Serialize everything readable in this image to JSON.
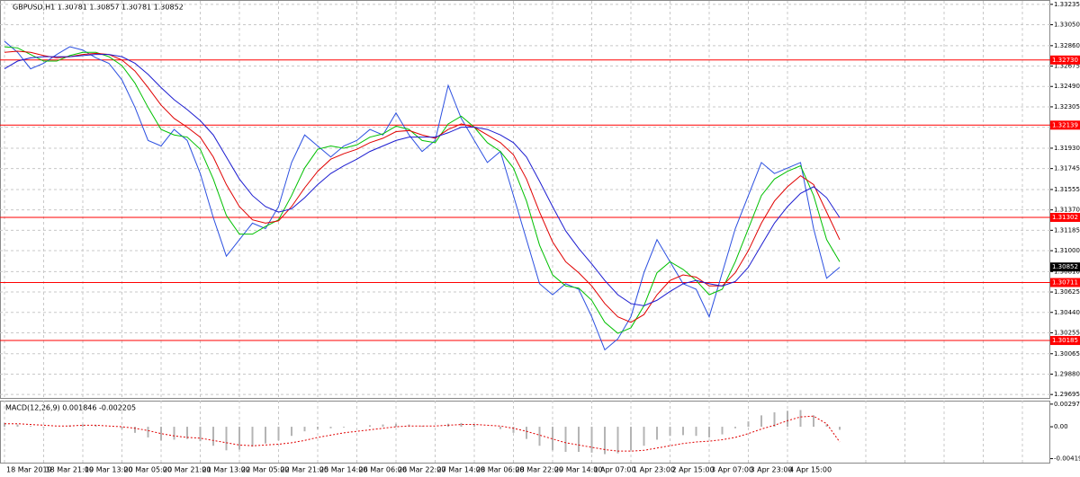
{
  "chart_data": [
    {
      "type": "line",
      "title": "GBPUSD,H1  1.30781 1.30857 1.30781 1.30852",
      "categories": [
        "18 Mar 2019",
        null,
        null,
        "18 Mar 21:00",
        null,
        null,
        "19 Mar 13:00",
        null,
        null,
        "20 Mar 05:00",
        null,
        null,
        "20 Mar 21:00",
        null,
        null,
        "21 Mar 13:00",
        null,
        null,
        "22 Mar 05:00",
        null,
        null,
        "22 Mar 21:00",
        null,
        null,
        "25 Mar 14:00",
        null,
        null,
        "26 Mar 06:00",
        null,
        null,
        "26 Mar 22:00",
        null,
        null,
        "27 Mar 14:00",
        null,
        null,
        "28 Mar 06:00",
        null,
        null,
        "28 Mar 22:00",
        null,
        null,
        "29 Mar 14:00",
        null,
        null,
        "1 Apr 07:00",
        null,
        null,
        "1 Apr 23:00",
        null,
        null,
        "2 Apr 15:00",
        null,
        null,
        "3 Apr 07:00",
        null,
        null,
        "3 Apr 23:00",
        null,
        null,
        "4 Apr 15:00",
        null,
        null,
        null,
        null
      ],
      "series": [
        {
          "color": "#2b4fe0",
          "values": [
            1.329,
            1.328,
            1.3265,
            1.327,
            1.3278,
            1.3285,
            1.3282,
            1.3275,
            1.327,
            1.3255,
            1.323,
            1.32,
            1.3195,
            1.321,
            1.32,
            1.317,
            1.313,
            1.3095,
            1.311,
            1.3125,
            1.312,
            1.314,
            1.318,
            1.3205,
            1.3195,
            1.3185,
            1.3195,
            1.32,
            1.321,
            1.3205,
            1.3225,
            1.3205,
            1.319,
            1.32,
            1.325,
            1.322,
            1.32,
            1.318,
            1.319,
            1.315,
            1.311,
            1.307,
            1.306,
            1.307,
            1.3065,
            1.304,
            1.301,
            1.302,
            1.304,
            1.308,
            1.311,
            1.309,
            1.307,
            1.3065,
            1.304,
            1.308,
            1.312,
            1.315,
            1.318,
            1.317,
            1.3175,
            1.318,
            1.312,
            1.3075,
            1.3085
          ]
        },
        {
          "color": "#00c000",
          "values": [
            1.3285,
            1.3284,
            1.3278,
            1.3272,
            1.3272,
            1.3277,
            1.328,
            1.328,
            1.3276,
            1.3268,
            1.3252,
            1.323,
            1.321,
            1.3205,
            1.3203,
            1.3192,
            1.3165,
            1.3132,
            1.3115,
            1.3115,
            1.3122,
            1.3128,
            1.315,
            1.3175,
            1.3192,
            1.3195,
            1.3193,
            1.3196,
            1.3203,
            1.3206,
            1.3213,
            1.321,
            1.32,
            1.3198,
            1.3215,
            1.3222,
            1.3212,
            1.3198,
            1.319,
            1.3175,
            1.3145,
            1.3105,
            1.3078,
            1.3068,
            1.3066,
            1.3055,
            1.3035,
            1.3025,
            1.303,
            1.305,
            1.308,
            1.309,
            1.3083,
            1.3073,
            1.306,
            1.3065,
            1.309,
            1.312,
            1.315,
            1.3165,
            1.3172,
            1.3177,
            1.315,
            1.311,
            1.309
          ]
        },
        {
          "color": "#e00000",
          "values": [
            1.328,
            1.3281,
            1.328,
            1.3277,
            1.3275,
            1.3276,
            1.3278,
            1.3279,
            1.3278,
            1.3273,
            1.3263,
            1.3248,
            1.3232,
            1.322,
            1.3212,
            1.3203,
            1.3185,
            1.316,
            1.314,
            1.3128,
            1.3125,
            1.3127,
            1.314,
            1.3157,
            1.3172,
            1.3183,
            1.3188,
            1.3192,
            1.3198,
            1.3202,
            1.3208,
            1.3209,
            1.3205,
            1.3202,
            1.321,
            1.3215,
            1.3212,
            1.3205,
            1.3198,
            1.3187,
            1.3165,
            1.3135,
            1.3108,
            1.309,
            1.308,
            1.3068,
            1.3052,
            1.304,
            1.3035,
            1.3042,
            1.306,
            1.3073,
            1.3078,
            1.3076,
            1.3068,
            1.3068,
            1.308,
            1.31,
            1.3125,
            1.3145,
            1.3158,
            1.3168,
            1.316,
            1.3135,
            1.311
          ]
        },
        {
          "color": "#1c1cd0",
          "values": [
            1.3265,
            1.3272,
            1.3275,
            1.3276,
            1.3276,
            1.3276,
            1.3277,
            1.3278,
            1.3278,
            1.3276,
            1.327,
            1.326,
            1.3248,
            1.3237,
            1.3228,
            1.3218,
            1.3205,
            1.3185,
            1.3165,
            1.315,
            1.314,
            1.3135,
            1.3138,
            1.3148,
            1.316,
            1.317,
            1.3177,
            1.3183,
            1.319,
            1.3195,
            1.32,
            1.3203,
            1.3203,
            1.3203,
            1.3207,
            1.3212,
            1.3212,
            1.321,
            1.3205,
            1.3198,
            1.3185,
            1.3163,
            1.314,
            1.3118,
            1.3102,
            1.3088,
            1.3073,
            1.306,
            1.3052,
            1.305,
            1.3055,
            1.3063,
            1.307,
            1.3073,
            1.307,
            1.3068,
            1.3072,
            1.3085,
            1.3105,
            1.3125,
            1.314,
            1.3152,
            1.3158,
            1.3148,
            1.313
          ]
        }
      ],
      "ylim": [
        1.2968,
        1.3325
      ],
      "yticks": [
        {
          "value": 1.33235,
          "label": "1.33235"
        },
        {
          "value": 1.3305,
          "label": "1.33050"
        },
        {
          "value": 1.3286,
          "label": "1.32860"
        },
        {
          "value": 1.32675,
          "label": "1.32675"
        },
        {
          "value": 1.3249,
          "label": "1.32490"
        },
        {
          "value": 1.32305,
          "label": "1.32305"
        },
        {
          "value": 1.3212,
          "label": "1.32120"
        },
        {
          "value": 1.3193,
          "label": "1.31930"
        },
        {
          "value": 1.31745,
          "label": "1.31745"
        },
        {
          "value": 1.31555,
          "label": "1.31555"
        },
        {
          "value": 1.3137,
          "label": "1.31370"
        },
        {
          "value": 1.31185,
          "label": "1.31185"
        },
        {
          "value": 1.31,
          "label": "1.31000"
        },
        {
          "value": 1.3081,
          "label": "1.30810"
        },
        {
          "value": 1.30625,
          "label": "1.30625"
        },
        {
          "value": 1.3044,
          "label": "1.30440"
        },
        {
          "value": 1.30255,
          "label": "1.30255"
        },
        {
          "value": 1.30065,
          "label": "1.30065"
        },
        {
          "value": 1.2988,
          "label": "1.29880"
        },
        {
          "value": 1.29695,
          "label": "1.29695"
        }
      ],
      "levels": [
        {
          "value": 1.3273,
          "label": "1.32730"
        },
        {
          "value": 1.32139,
          "label": "1.32139"
        },
        {
          "value": 1.31302,
          "label": "1.31302"
        },
        {
          "value": 1.30711,
          "label": "1.30711"
        },
        {
          "value": 1.30185,
          "label": "1.30185"
        }
      ],
      "level_color": "#ff0000",
      "current_price": {
        "value": 1.30852,
        "label": "1.30852"
      },
      "grid": true
    },
    {
      "type": "macd",
      "title": "MACD(12,26,9) 0.001846 -0.002205",
      "series": [
        {
          "color": "#b4b4b4",
          "values": [
            0.0005,
            0.0003,
            0.0001,
            -0.0001,
            0.0,
            0.0002,
            0.0003,
            0.0002,
            0.0,
            -0.0003,
            -0.0008,
            -0.0014,
            -0.0018,
            -0.0017,
            -0.0016,
            -0.0019,
            -0.0025,
            -0.0031,
            -0.003,
            -0.0026,
            -0.0022,
            -0.0018,
            -0.0012,
            -0.0006,
            -0.0003,
            -0.0002,
            -0.0001,
            0.0,
            0.0002,
            0.0003,
            0.0004,
            0.0003,
            0.0001,
            0.0,
            0.0004,
            0.0005,
            0.0003,
            0.0,
            -0.0003,
            -0.0008,
            -0.0016,
            -0.0025,
            -0.0031,
            -0.0033,
            -0.0033,
            -0.0034,
            -0.0036,
            -0.0035,
            -0.0031,
            -0.0025,
            -0.0017,
            -0.0012,
            -0.0011,
            -0.0012,
            -0.0014,
            -0.001,
            -0.0002,
            0.0007,
            0.0015,
            0.0019,
            0.0021,
            0.0022,
            0.0015,
            0.0003,
            -0.0004
          ]
        },
        {
          "color": "#e00000",
          "values": [
            0.0004,
            0.0004,
            0.0003,
            0.0002,
            0.0001,
            0.0001,
            0.0002,
            0.0002,
            0.0001,
            0.0,
            -0.0002,
            -0.0005,
            -0.0009,
            -0.0012,
            -0.0014,
            -0.0015,
            -0.0018,
            -0.0021,
            -0.0024,
            -0.0025,
            -0.0024,
            -0.0023,
            -0.0021,
            -0.0018,
            -0.0014,
            -0.0011,
            -0.0008,
            -0.0006,
            -0.0004,
            -0.0002,
            0.0,
            0.0001,
            0.0001,
            0.0001,
            0.0002,
            0.0003,
            0.0003,
            0.0002,
            0.0001,
            -0.0002,
            -0.0006,
            -0.0011,
            -0.0016,
            -0.0021,
            -0.0024,
            -0.0027,
            -0.003,
            -0.0032,
            -0.0032,
            -0.0031,
            -0.0028,
            -0.0025,
            -0.0022,
            -0.002,
            -0.0019,
            -0.0017,
            -0.0014,
            -0.0009,
            -0.0003,
            0.0002,
            0.0008,
            0.0013,
            0.0014,
            0.0004,
            -0.002
          ]
        }
      ],
      "ylim": [
        -0.0046,
        0.0032
      ],
      "yticks": [
        0.002978,
        {
          "value": 0,
          "label": "0.00"
        },
        -0.004195
      ]
    }
  ]
}
